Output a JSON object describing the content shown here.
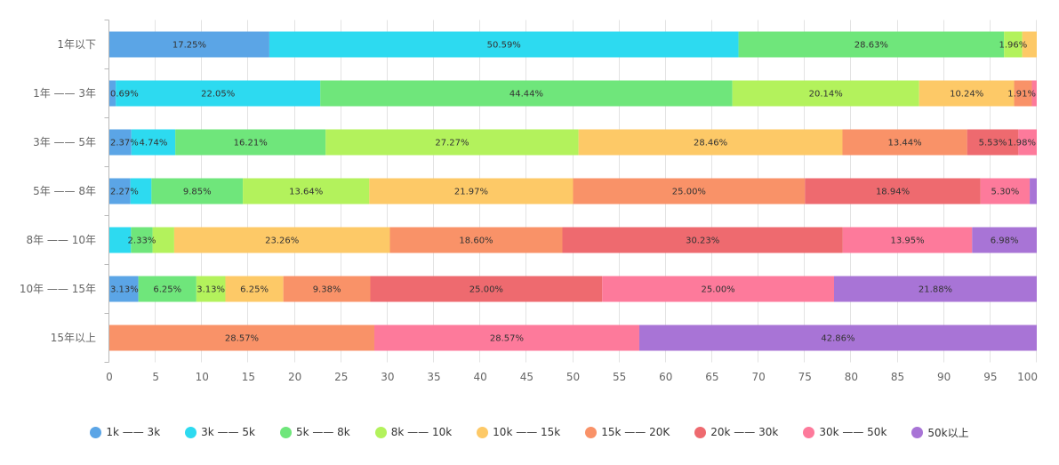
{
  "chart_data": {
    "type": "bar",
    "horizontal": true,
    "stacked": true,
    "grid": true,
    "legend": "bottom",
    "xlim": [
      0,
      100
    ],
    "xticks": [
      0,
      5,
      10,
      15,
      20,
      25,
      30,
      35,
      40,
      45,
      50,
      55,
      60,
      65,
      70,
      75,
      80,
      85,
      90,
      95,
      100
    ],
    "value_suffix": "%",
    "categories": [
      "1年以下",
      "1年 —— 3年",
      "3年 —— 5年",
      "5年 —— 8年",
      "8年 —— 10年",
      "10年 —— 15年",
      "15年以上"
    ],
    "series": [
      {
        "name": "1k —— 3k",
        "color": "#5ba5e6",
        "values": [
          17.25,
          0.69,
          2.37,
          2.27,
          0,
          3.13,
          0
        ]
      },
      {
        "name": "3k —— 5k",
        "color": "#2ddaf0",
        "values": [
          50.59,
          22.05,
          4.74,
          2.27,
          2.33,
          0,
          0
        ]
      },
      {
        "name": "5k —— 8k",
        "color": "#6fe67b",
        "values": [
          28.63,
          44.44,
          16.21,
          9.85,
          2.33,
          6.25,
          0
        ]
      },
      {
        "name": "8k —— 10k",
        "color": "#b3f25c",
        "values": [
          1.96,
          20.14,
          27.27,
          13.64,
          2.33,
          3.13,
          0
        ]
      },
      {
        "name": "10k —— 15k",
        "color": "#fdc967",
        "values": [
          1.57,
          10.24,
          28.46,
          21.97,
          23.26,
          6.25,
          0
        ]
      },
      {
        "name": "15k —— 20K",
        "color": "#f99268",
        "values": [
          0,
          1.91,
          13.44,
          25.0,
          18.6,
          9.38,
          28.57
        ]
      },
      {
        "name": "20k —— 30k",
        "color": "#ee6a6f",
        "values": [
          0,
          0,
          5.53,
          18.94,
          30.23,
          25.0,
          0
        ]
      },
      {
        "name": "30k —— 50k",
        "color": "#fd7a9b",
        "values": [
          0,
          0.52,
          1.98,
          5.3,
          13.95,
          25.0,
          28.57
        ]
      },
      {
        "name": "50k以上",
        "color": "#a874d6",
        "values": [
          0,
          0,
          0,
          0.76,
          6.98,
          21.88,
          42.86
        ]
      }
    ],
    "hidden_value_labels": [
      {
        "series": 4,
        "category": 0
      },
      {
        "series": 7,
        "category": 1
      },
      {
        "series": 1,
        "category": 3
      },
      {
        "series": 8,
        "category": 3
      },
      {
        "series": 1,
        "category": 4
      },
      {
        "series": 3,
        "category": 4
      }
    ]
  }
}
